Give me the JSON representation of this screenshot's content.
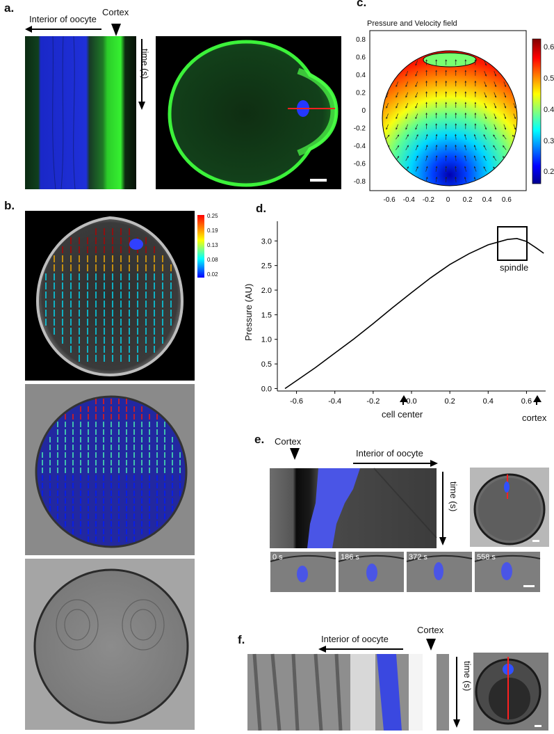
{
  "panels": {
    "a": {
      "label": "a.",
      "interior_label": "Interior of oocyte",
      "cortex_label": "Cortex",
      "time_label": "time (s)"
    },
    "b": {
      "label": "b.",
      "colorbar_ticks": [
        "0.25",
        "0.19",
        "0.13",
        "0.08",
        "0.02"
      ]
    },
    "c": {
      "label": "c.",
      "colorbar_ticks": [
        "0.6",
        "0.5",
        "0.4",
        "0.3",
        "0.2"
      ]
    },
    "d": {
      "label": "d.",
      "annotation_spindle": "spindle",
      "annotation_cell_center": "cell center",
      "annotation_cortex": "cortex"
    },
    "e": {
      "label": "e.",
      "cortex_label": "Cortex",
      "interior_label": "Interior of oocyte",
      "time_label": "time (s)",
      "frames": [
        "0 s",
        "186 s",
        "372 s",
        "558 s"
      ]
    },
    "f": {
      "label": "f.",
      "interior_label": "Interior of oocyte",
      "cortex_label": "Cortex",
      "time_label": "time (s)"
    }
  },
  "chart_data": [
    {
      "type": "heatmap",
      "title": "Pressure and Velocity field",
      "xlabel": "",
      "ylabel": "",
      "xticks": [
        "-0.6",
        "-0.4",
        "-0.2",
        "0",
        "0.2",
        "0.4",
        "0.6"
      ],
      "yticks": [
        "0.8",
        "0.6",
        "0.4",
        "0.2",
        "0",
        "-0.2",
        "-0.4",
        "-0.6",
        "-0.8"
      ],
      "xlim": [
        -0.8,
        0.8
      ],
      "ylim": [
        -0.9,
        0.9
      ],
      "colorbar_range": [
        0.17,
        0.62
      ],
      "colormap": "jet"
    },
    {
      "type": "line",
      "title": "",
      "xlabel": "",
      "ylabel": "Pressure (AU)",
      "xticks": [
        "-0.6",
        "-0.4",
        "-0.2",
        "0.0",
        "0.2",
        "0.4",
        "0.6"
      ],
      "yticks": [
        "0.0",
        "0.5",
        "1.0",
        "1.5",
        "2.0",
        "2.5",
        "3.0"
      ],
      "xlim": [
        -0.7,
        0.7
      ],
      "ylim": [
        -0.05,
        3.4
      ],
      "grid": false,
      "series": [
        {
          "x": [
            -0.66,
            -0.6,
            -0.5,
            -0.4,
            -0.3,
            -0.2,
            -0.1,
            0.0,
            0.1,
            0.2,
            0.3,
            0.4,
            0.5,
            0.55,
            0.6,
            0.65,
            0.69
          ],
          "values": [
            0.0,
            0.16,
            0.43,
            0.72,
            1.01,
            1.32,
            1.64,
            1.95,
            2.25,
            2.52,
            2.74,
            2.92,
            3.03,
            3.05,
            2.99,
            2.86,
            2.75
          ]
        }
      ]
    }
  ]
}
